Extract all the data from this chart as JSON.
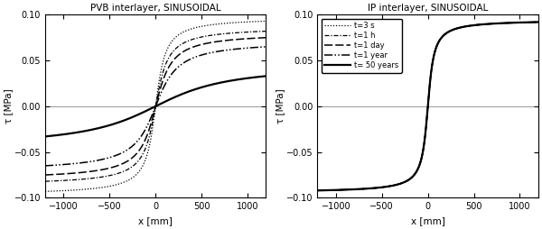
{
  "title_left": "PVB interlayer, SINUSOIDAL",
  "title_right": "IP interlayer, SINUSOIDAL",
  "xlabel": "x [mm]",
  "ylabel": "τ [MPa]",
  "xlim": [
    -1200,
    1200
  ],
  "ylim": [
    -0.1,
    0.1
  ],
  "xticks": [
    -1000,
    -500,
    0,
    500,
    1000
  ],
  "yticks": [
    -0.1,
    -0.05,
    0,
    0.05,
    0.1
  ],
  "legend_labels": [
    "t=3 s",
    "t=1 h",
    "t=1 day",
    "t=1 year",
    "t= 50 years"
  ],
  "line_color": "#000000",
  "background_color": "#ffffff",
  "zero_line_color": "#999999",
  "pvb_amplitudes": [
    0.093,
    0.082,
    0.075,
    0.065,
    0.033
  ],
  "pvb_shape_k": [
    80,
    100,
    130,
    180,
    600
  ],
  "ip_amplitudes": [
    0.092,
    0.092,
    0.092,
    0.092,
    0.092
  ],
  "ip_shape_k": [
    50,
    50,
    50,
    50,
    50
  ],
  "linewidths": [
    0.9,
    0.9,
    1.1,
    1.1,
    1.6
  ]
}
